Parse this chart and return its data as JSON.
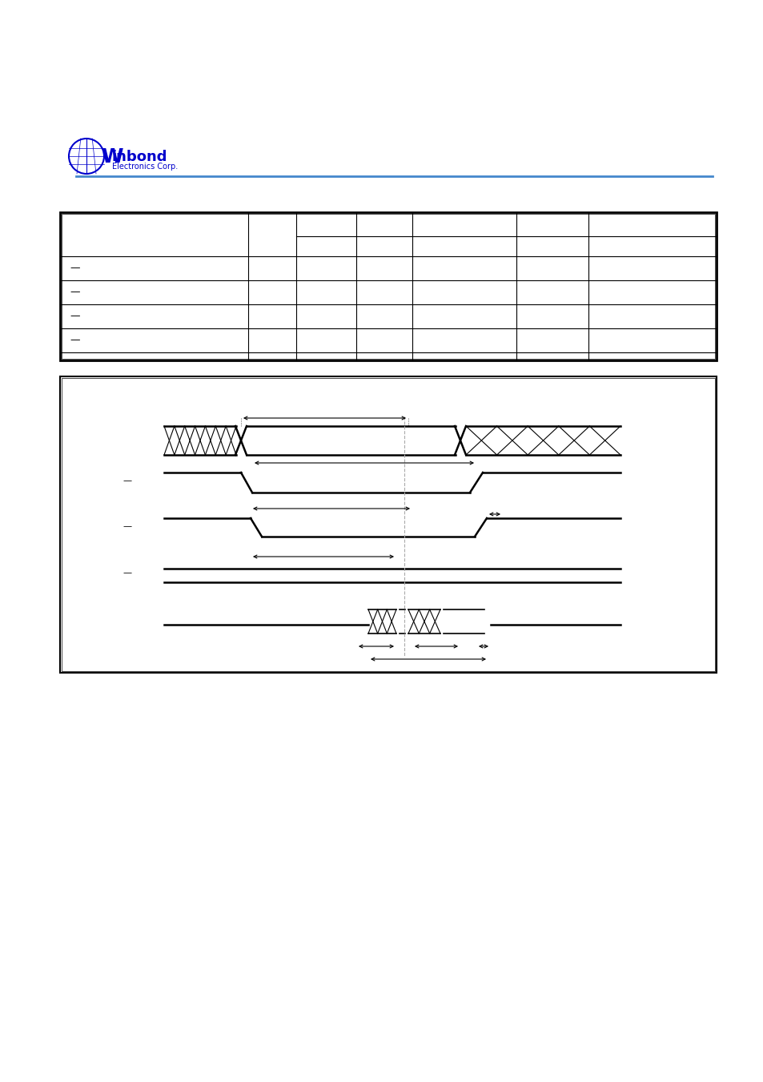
{
  "bg_color": "#ffffff",
  "line_color": "#000000",
  "logo_color": "#0000cc",
  "table_border_color": "#000000",
  "diagram_box_color": "#000000",
  "page_bg": "#ffffff"
}
